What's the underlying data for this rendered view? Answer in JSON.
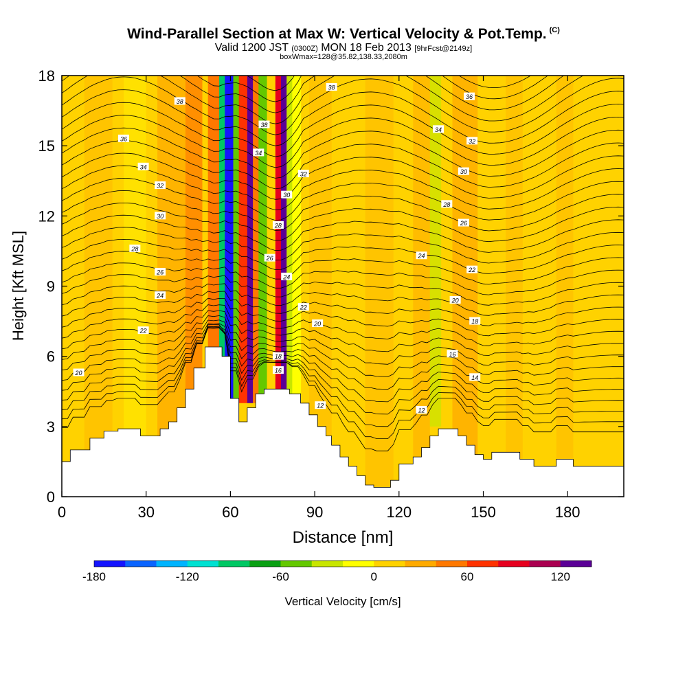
{
  "title": {
    "main": "Wind-Parallel Section at Max W: Vertical Velocity & Pot.Temp.",
    "copyright": "(C)",
    "valid_prefix": "Valid 1200 JST",
    "valid_utc": "(0300Z)",
    "valid_date": "MON 18 Feb 2013",
    "forecast": "[9hrFcst@2149z]",
    "box": "boxWmax=128@35.82,138.33,2080m"
  },
  "chart_data": {
    "type": "heatmap",
    "xlabel": "Distance [nm]",
    "ylabel": "Height [Kft MSL]",
    "xlim": [
      0,
      200
    ],
    "ylim": [
      0,
      18
    ],
    "x_ticks": [
      0,
      30,
      60,
      90,
      120,
      150,
      180
    ],
    "y_ticks": [
      0,
      3,
      6,
      9,
      12,
      15,
      18
    ],
    "colorbar": {
      "label": "Vertical Velocity [cm/s]",
      "min": -180,
      "max": 140,
      "step": 20,
      "tick_labels": [
        -180,
        -120,
        -60,
        0,
        60,
        120
      ],
      "colors": [
        "#1414ff",
        "#0a64ff",
        "#00b4ff",
        "#00e1d2",
        "#00c864",
        "#0aa014",
        "#64c800",
        "#c8e600",
        "#ffff00",
        "#ffd200",
        "#ffaa00",
        "#ff7800",
        "#ff3200",
        "#e6001e",
        "#aa0050",
        "#5a0096"
      ]
    },
    "velocity_bands": [
      {
        "x_min": 52,
        "x_max": 56,
        "w": 40
      },
      {
        "x_min": 56,
        "x_max": 58,
        "w": -100
      },
      {
        "x_min": 58,
        "x_max": 61,
        "w": -180
      },
      {
        "x_min": 61,
        "x_max": 63,
        "w": -60
      },
      {
        "x_min": 63,
        "x_max": 66,
        "w": 60
      },
      {
        "x_min": 66,
        "x_max": 68,
        "w": 120
      },
      {
        "x_min": 68,
        "x_max": 70,
        "w": 40
      },
      {
        "x_min": 70,
        "x_max": 73,
        "w": -60
      },
      {
        "x_min": 73,
        "x_max": 76,
        "w": 0
      },
      {
        "x_min": 76,
        "x_max": 78,
        "w": 80
      },
      {
        "x_min": 78,
        "x_max": 80,
        "w": 130
      },
      {
        "x_min": 80,
        "x_max": 82,
        "w": -40
      },
      {
        "x_min": 82,
        "x_max": 85,
        "w": -20
      }
    ],
    "terrain_kft": [
      [
        0,
        1.5
      ],
      [
        3,
        1.5
      ],
      [
        3,
        2
      ],
      [
        10,
        2
      ],
      [
        10,
        2.5
      ],
      [
        15,
        2.5
      ],
      [
        15,
        2.8
      ],
      [
        20,
        2.8
      ],
      [
        20,
        2.9
      ],
      [
        28,
        2.9
      ],
      [
        28,
        2.6
      ],
      [
        35,
        2.6
      ],
      [
        35,
        2.9
      ],
      [
        38,
        2.9
      ],
      [
        38,
        3.2
      ],
      [
        41,
        3.2
      ],
      [
        41,
        3.8
      ],
      [
        44,
        3.8
      ],
      [
        44,
        4.6
      ],
      [
        47,
        4.6
      ],
      [
        47,
        5.5
      ],
      [
        51,
        5.5
      ],
      [
        51,
        6.4
      ],
      [
        57,
        6.4
      ],
      [
        57,
        6
      ],
      [
        60,
        6
      ],
      [
        60,
        4.2
      ],
      [
        63,
        4.2
      ],
      [
        63,
        3.2
      ],
      [
        66,
        3.2
      ],
      [
        66,
        3.8
      ],
      [
        69,
        3.8
      ],
      [
        69,
        4.4
      ],
      [
        72,
        4.4
      ],
      [
        72,
        4.6
      ],
      [
        81,
        4.6
      ],
      [
        81,
        4.4
      ],
      [
        85,
        4.4
      ],
      [
        85,
        4
      ],
      [
        88,
        4
      ],
      [
        88,
        3.5
      ],
      [
        91,
        3.5
      ],
      [
        91,
        3
      ],
      [
        94,
        3
      ],
      [
        94,
        2.6
      ],
      [
        96,
        2.6
      ],
      [
        96,
        2.2
      ],
      [
        99,
        2.2
      ],
      [
        99,
        1.7
      ],
      [
        102,
        1.7
      ],
      [
        102,
        1.3
      ],
      [
        105,
        1.3
      ],
      [
        105,
        0.9
      ],
      [
        108,
        0.9
      ],
      [
        108,
        0.5
      ],
      [
        111,
        0.5
      ],
      [
        111,
        0.4
      ],
      [
        117,
        0.4
      ],
      [
        117,
        0.7
      ],
      [
        120,
        0.7
      ],
      [
        120,
        1.4
      ],
      [
        125,
        1.4
      ],
      [
        125,
        1.7
      ],
      [
        128,
        1.7
      ],
      [
        128,
        2.1
      ],
      [
        131,
        2.1
      ],
      [
        131,
        2.6
      ],
      [
        134,
        2.6
      ],
      [
        134,
        2.9
      ],
      [
        141,
        2.9
      ],
      [
        141,
        2.6
      ],
      [
        144,
        2.6
      ],
      [
        144,
        2.2
      ],
      [
        147,
        2.2
      ],
      [
        147,
        1.8
      ],
      [
        150,
        1.8
      ],
      [
        150,
        1.6
      ],
      [
        153,
        1.6
      ],
      [
        153,
        1.9
      ],
      [
        163,
        1.9
      ],
      [
        163,
        1.6
      ],
      [
        168,
        1.6
      ],
      [
        168,
        1.3
      ],
      [
        176,
        1.3
      ],
      [
        176,
        1.6
      ],
      [
        182,
        1.6
      ],
      [
        182,
        1.3
      ],
      [
        200,
        1.3
      ]
    ],
    "isentrope_labels": [
      {
        "value": "20",
        "x": 6,
        "y": 5.3
      },
      {
        "value": "22",
        "x": 29,
        "y": 7.1
      },
      {
        "value": "24",
        "x": 35,
        "y": 8.6
      },
      {
        "value": "26",
        "x": 35,
        "y": 9.6
      },
      {
        "value": "28",
        "x": 26,
        "y": 10.6
      },
      {
        "value": "30",
        "x": 35,
        "y": 12.0
      },
      {
        "value": "32",
        "x": 35,
        "y": 13.3
      },
      {
        "value": "34",
        "x": 29,
        "y": 14.1
      },
      {
        "value": "36",
        "x": 22,
        "y": 15.3
      },
      {
        "value": "38",
        "x": 42,
        "y": 16.9
      },
      {
        "value": "38",
        "x": 72,
        "y": 15.9
      },
      {
        "value": "34",
        "x": 70,
        "y": 14.7
      },
      {
        "value": "30",
        "x": 80,
        "y": 12.9
      },
      {
        "value": "28",
        "x": 77,
        "y": 11.6
      },
      {
        "value": "26",
        "x": 74,
        "y": 10.2
      },
      {
        "value": "24",
        "x": 80,
        "y": 9.4
      },
      {
        "value": "22",
        "x": 86,
        "y": 8.1
      },
      {
        "value": "20",
        "x": 91,
        "y": 7.4
      },
      {
        "value": "18",
        "x": 77,
        "y": 6.0
      },
      {
        "value": "16",
        "x": 77,
        "y": 5.4
      },
      {
        "value": "12",
        "x": 92,
        "y": 3.9
      },
      {
        "value": "38",
        "x": 96,
        "y": 17.5
      },
      {
        "value": "32",
        "x": 86,
        "y": 13.8
      },
      {
        "value": "34",
        "x": 134,
        "y": 15.7
      },
      {
        "value": "36",
        "x": 145,
        "y": 17.1
      },
      {
        "value": "32",
        "x": 146,
        "y": 15.2
      },
      {
        "value": "30",
        "x": 143,
        "y": 13.9
      },
      {
        "value": "28",
        "x": 137,
        "y": 12.5
      },
      {
        "value": "26",
        "x": 143,
        "y": 11.7
      },
      {
        "value": "24",
        "x": 128,
        "y": 10.3
      },
      {
        "value": "22",
        "x": 146,
        "y": 9.7
      },
      {
        "value": "20",
        "x": 140,
        "y": 8.4
      },
      {
        "value": "18",
        "x": 147,
        "y": 7.5
      },
      {
        "value": "16",
        "x": 139,
        "y": 6.1
      },
      {
        "value": "14",
        "x": 147,
        "y": 5.1
      },
      {
        "value": "12",
        "x": 128,
        "y": 3.7
      }
    ]
  }
}
